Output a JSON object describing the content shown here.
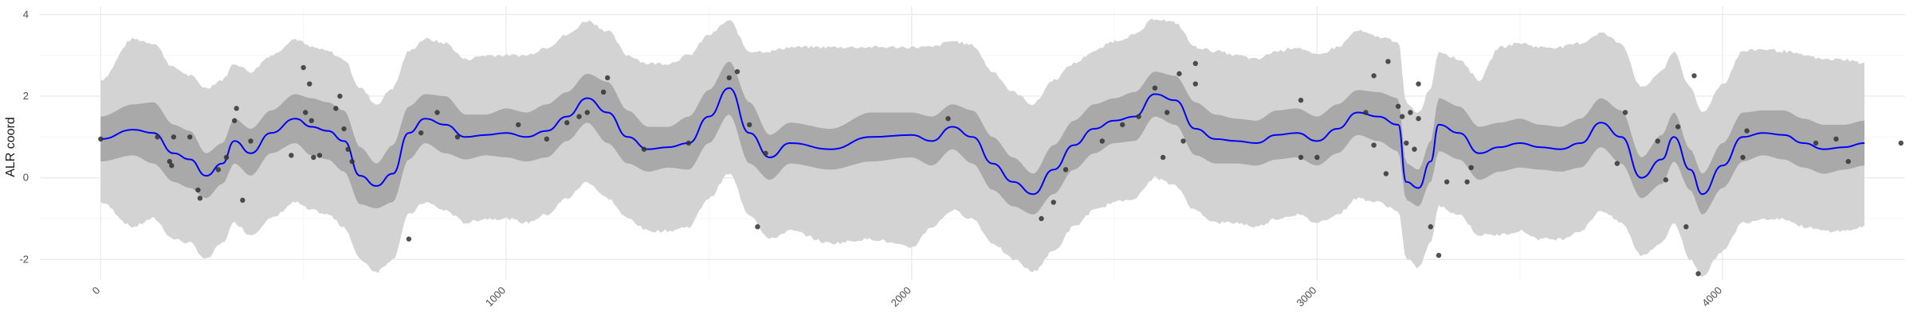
{
  "chart_data": {
    "type": "line",
    "title": "",
    "xlabel": "",
    "ylabel": "ALR coord",
    "xlim": [
      -150,
      4450
    ],
    "ylim": [
      -2.5,
      4.2
    ],
    "x_ticks": [
      0,
      1000,
      2000,
      3000,
      4000
    ],
    "x_tick_labels": [
      "0",
      "1000",
      "2000",
      "3000",
      "4000"
    ],
    "y_ticks": [
      -2,
      0,
      2,
      4
    ],
    "y_tick_labels": [
      "-2",
      "0",
      "2",
      "4"
    ],
    "grid": true,
    "colors": {
      "mean_line": "#0000ff",
      "inner_band": "#a9a9a9",
      "outer_band": "#d3d3d3",
      "points": "#333333",
      "grid_major": "#ebebeb",
      "grid_minor": "#f5f5f5"
    },
    "mean": {
      "x": [
        0,
        80,
        130,
        180,
        220,
        260,
        300,
        330,
        370,
        420,
        480,
        520,
        560,
        600,
        640,
        680,
        720,
        760,
        800,
        850,
        900,
        950,
        1000,
        1050,
        1100,
        1150,
        1200,
        1250,
        1300,
        1350,
        1400,
        1450,
        1500,
        1550,
        1600,
        1650,
        1700,
        1800,
        1900,
        2000,
        2050,
        2100,
        2150,
        2200,
        2250,
        2300,
        2350,
        2400,
        2450,
        2500,
        2550,
        2600,
        2650,
        2700,
        2750,
        2800,
        2850,
        2900,
        2950,
        3000,
        3050,
        3100,
        3150,
        3200,
        3220,
        3250,
        3280,
        3300,
        3350,
        3400,
        3450,
        3500,
        3550,
        3600,
        3650,
        3700,
        3750,
        3800,
        3850,
        3880,
        3920,
        3950,
        4000,
        4050,
        4100,
        4150,
        4200,
        4250,
        4300,
        4350
      ],
      "y": [
        0.95,
        1.18,
        1.1,
        0.6,
        0.45,
        0.05,
        0.35,
        0.9,
        0.6,
        1.1,
        1.45,
        1.25,
        1.15,
        0.9,
        0.05,
        -0.2,
        0.1,
        1.1,
        1.45,
        1.3,
        1.0,
        1.05,
        1.1,
        1.0,
        1.15,
        1.5,
        1.95,
        1.6,
        1.0,
        0.7,
        0.75,
        0.85,
        1.5,
        2.2,
        1.1,
        0.5,
        0.85,
        0.7,
        1.0,
        1.05,
        0.9,
        1.25,
        1.0,
        0.35,
        -0.1,
        -0.4,
        0.2,
        0.8,
        1.2,
        1.4,
        1.5,
        2.05,
        1.9,
        1.2,
        0.95,
        0.9,
        0.85,
        1.05,
        1.1,
        0.9,
        1.2,
        1.6,
        1.5,
        1.3,
        -0.1,
        -0.25,
        0.4,
        1.3,
        1.1,
        0.6,
        0.75,
        0.85,
        0.75,
        0.7,
        0.85,
        1.35,
        1.0,
        0.0,
        0.45,
        1.0,
        0.2,
        -0.4,
        0.3,
        1.0,
        1.1,
        1.05,
        0.85,
        0.7,
        0.75,
        0.85
      ]
    },
    "inner_band": {
      "lower": [
        0.4,
        0.55,
        0.35,
        -0.1,
        -0.25,
        -0.5,
        -0.15,
        0.35,
        0.05,
        0.6,
        0.85,
        0.55,
        0.45,
        0.15,
        -0.65,
        -0.75,
        -0.6,
        0.45,
        0.85,
        0.6,
        0.45,
        0.55,
        0.5,
        0.4,
        0.5,
        0.9,
        1.35,
        0.85,
        0.35,
        0.15,
        0.25,
        0.2,
        0.85,
        1.55,
        0.35,
        -0.05,
        0.35,
        0.2,
        0.4,
        0.5,
        0.3,
        0.7,
        0.35,
        -0.3,
        -0.7,
        -0.9,
        -0.4,
        0.2,
        0.6,
        0.85,
        0.9,
        1.5,
        1.3,
        0.55,
        0.35,
        0.35,
        0.3,
        0.45,
        0.5,
        0.3,
        0.6,
        1.05,
        0.9,
        0.65,
        -0.55,
        -0.7,
        -0.1,
        0.65,
        0.45,
        -0.05,
        0.15,
        0.25,
        0.2,
        0.15,
        0.25,
        0.75,
        0.35,
        -0.5,
        -0.15,
        0.4,
        -0.3,
        -0.9,
        -0.25,
        0.4,
        0.55,
        0.45,
        0.25,
        0.1,
        0.2,
        0.3
      ],
      "upper": [
        1.5,
        1.8,
        1.85,
        1.3,
        1.15,
        0.6,
        0.85,
        1.45,
        1.2,
        1.65,
        2.05,
        1.95,
        1.85,
        1.65,
        0.75,
        0.35,
        0.8,
        1.75,
        2.05,
        2.0,
        1.55,
        1.55,
        1.7,
        1.6,
        1.8,
        2.1,
        2.55,
        2.35,
        1.65,
        1.25,
        1.25,
        1.5,
        2.15,
        2.85,
        1.85,
        1.05,
        1.35,
        1.2,
        1.6,
        1.6,
        1.5,
        1.8,
        1.65,
        1.0,
        0.5,
        0.1,
        0.8,
        1.4,
        1.8,
        1.95,
        2.1,
        2.6,
        2.5,
        1.85,
        1.55,
        1.45,
        1.4,
        1.65,
        1.7,
        1.5,
        1.8,
        2.15,
        2.1,
        1.95,
        0.35,
        0.2,
        0.9,
        1.95,
        1.75,
        1.25,
        1.35,
        1.45,
        1.3,
        1.25,
        1.45,
        1.95,
        1.65,
        0.5,
        1.05,
        1.6,
        0.7,
        0.1,
        0.85,
        1.6,
        1.65,
        1.65,
        1.45,
        1.3,
        1.3,
        1.4
      ]
    },
    "outer_band": {
      "lower": [
        -0.6,
        -1.2,
        -1.0,
        -1.5,
        -1.6,
        -2.0,
        -1.6,
        -1.1,
        -1.4,
        -1.0,
        -0.6,
        -0.8,
        -0.9,
        -1.2,
        -2.0,
        -2.3,
        -2.0,
        -0.9,
        -0.6,
        -0.8,
        -1.1,
        -1.0,
        -1.0,
        -1.1,
        -0.9,
        -0.5,
        -0.1,
        -0.5,
        -1.0,
        -1.3,
        -1.3,
        -1.2,
        -0.5,
        0.1,
        -0.9,
        -1.5,
        -1.3,
        -1.6,
        -1.5,
        -1.7,
        -1.2,
        -0.8,
        -1.0,
        -1.6,
        -2.0,
        -2.3,
        -1.8,
        -1.2,
        -0.8,
        -0.6,
        -0.5,
        0.0,
        -0.2,
        -0.8,
        -1.1,
        -1.1,
        -1.2,
        -1.0,
        -0.9,
        -1.1,
        -0.9,
        -0.5,
        -0.6,
        -0.8,
        -2.0,
        -2.2,
        -1.6,
        -0.7,
        -0.9,
        -1.4,
        -1.4,
        -1.3,
        -1.5,
        -1.5,
        -1.3,
        -0.8,
        -1.1,
        -1.9,
        -1.6,
        -1.1,
        -2.0,
        -2.4,
        -1.8,
        -1.1,
        -1.0,
        -1.0,
        -1.2,
        -1.3,
        -1.3,
        -1.2
      ],
      "upper": [
        2.4,
        3.4,
        3.3,
        2.7,
        2.5,
        2.2,
        2.4,
        2.8,
        2.6,
        3.0,
        3.4,
        3.2,
        3.1,
        2.9,
        2.2,
        1.8,
        2.2,
        3.1,
        3.4,
        3.3,
        2.9,
        3.0,
        3.0,
        3.0,
        3.2,
        3.5,
        3.85,
        3.6,
        3.0,
        2.8,
        2.8,
        3.0,
        3.5,
        3.85,
        3.1,
        3.1,
        3.2,
        3.2,
        3.2,
        3.2,
        3.2,
        3.35,
        3.25,
        2.6,
        2.1,
        1.8,
        2.4,
        2.8,
        3.1,
        3.35,
        3.5,
        3.9,
        3.8,
        3.2,
        3.1,
        3.0,
        2.9,
        3.1,
        3.2,
        3.0,
        3.2,
        3.6,
        3.45,
        3.35,
        1.8,
        1.6,
        2.2,
        3.1,
        2.9,
        2.4,
        3.2,
        3.3,
        3.2,
        3.2,
        3.3,
        3.55,
        3.3,
        2.2,
        2.6,
        3.1,
        2.2,
        1.6,
        2.3,
        3.1,
        3.15,
        3.1,
        3.0,
        2.9,
        2.9,
        2.8
      ]
    },
    "points": {
      "x": [
        0,
        140,
        170,
        175,
        180,
        220,
        240,
        245,
        290,
        310,
        330,
        335,
        350,
        370,
        470,
        500,
        505,
        515,
        520,
        525,
        540,
        580,
        590,
        600,
        610,
        620,
        760,
        790,
        830,
        880,
        1030,
        1100,
        1150,
        1180,
        1200,
        1240,
        1250,
        1340,
        1450,
        1550,
        1570,
        1600,
        1620,
        1640,
        2090,
        2320,
        2350,
        2380,
        2470,
        2520,
        2560,
        2600,
        2620,
        2630,
        2660,
        2670,
        2700,
        2700,
        2960,
        2960,
        3000,
        3120,
        3140,
        3140,
        3170,
        3175,
        3200,
        3210,
        3220,
        3230,
        3240,
        3250,
        3250,
        3280,
        3300,
        3320,
        3370,
        3380,
        3740,
        3760,
        3840,
        3860,
        3890,
        3910,
        3930,
        3940,
        4050,
        4060,
        4230,
        4280,
        4310,
        4440
      ],
      "y": [
        0.95,
        1.0,
        0.4,
        0.3,
        1.0,
        1.0,
        -0.3,
        -0.5,
        0.2,
        0.5,
        1.4,
        1.7,
        -0.55,
        0.9,
        0.55,
        2.7,
        1.6,
        2.3,
        1.4,
        0.5,
        0.55,
        1.7,
        2.0,
        1.2,
        0.7,
        0.4,
        -1.5,
        1.1,
        1.6,
        1.0,
        1.3,
        0.95,
        1.35,
        1.5,
        1.6,
        2.1,
        2.45,
        0.7,
        0.85,
        2.45,
        2.6,
        1.3,
        -1.2,
        0.6,
        1.45,
        -1.0,
        -0.6,
        0.2,
        0.9,
        1.3,
        1.5,
        2.2,
        0.5,
        1.6,
        2.55,
        0.9,
        2.8,
        2.3,
        0.5,
        1.9,
        0.5,
        1.6,
        2.5,
        0.8,
        0.1,
        2.85,
        1.75,
        1.5,
        0.85,
        1.6,
        0.7,
        2.3,
        1.45,
        -1.2,
        -1.9,
        -0.1,
        -0.1,
        0.25,
        0.35,
        1.6,
        0.9,
        -0.05,
        1.25,
        -1.2,
        2.5,
        -2.35,
        0.5,
        1.15,
        0.85,
        0.95,
        0.4,
        0.85
      ]
    }
  }
}
